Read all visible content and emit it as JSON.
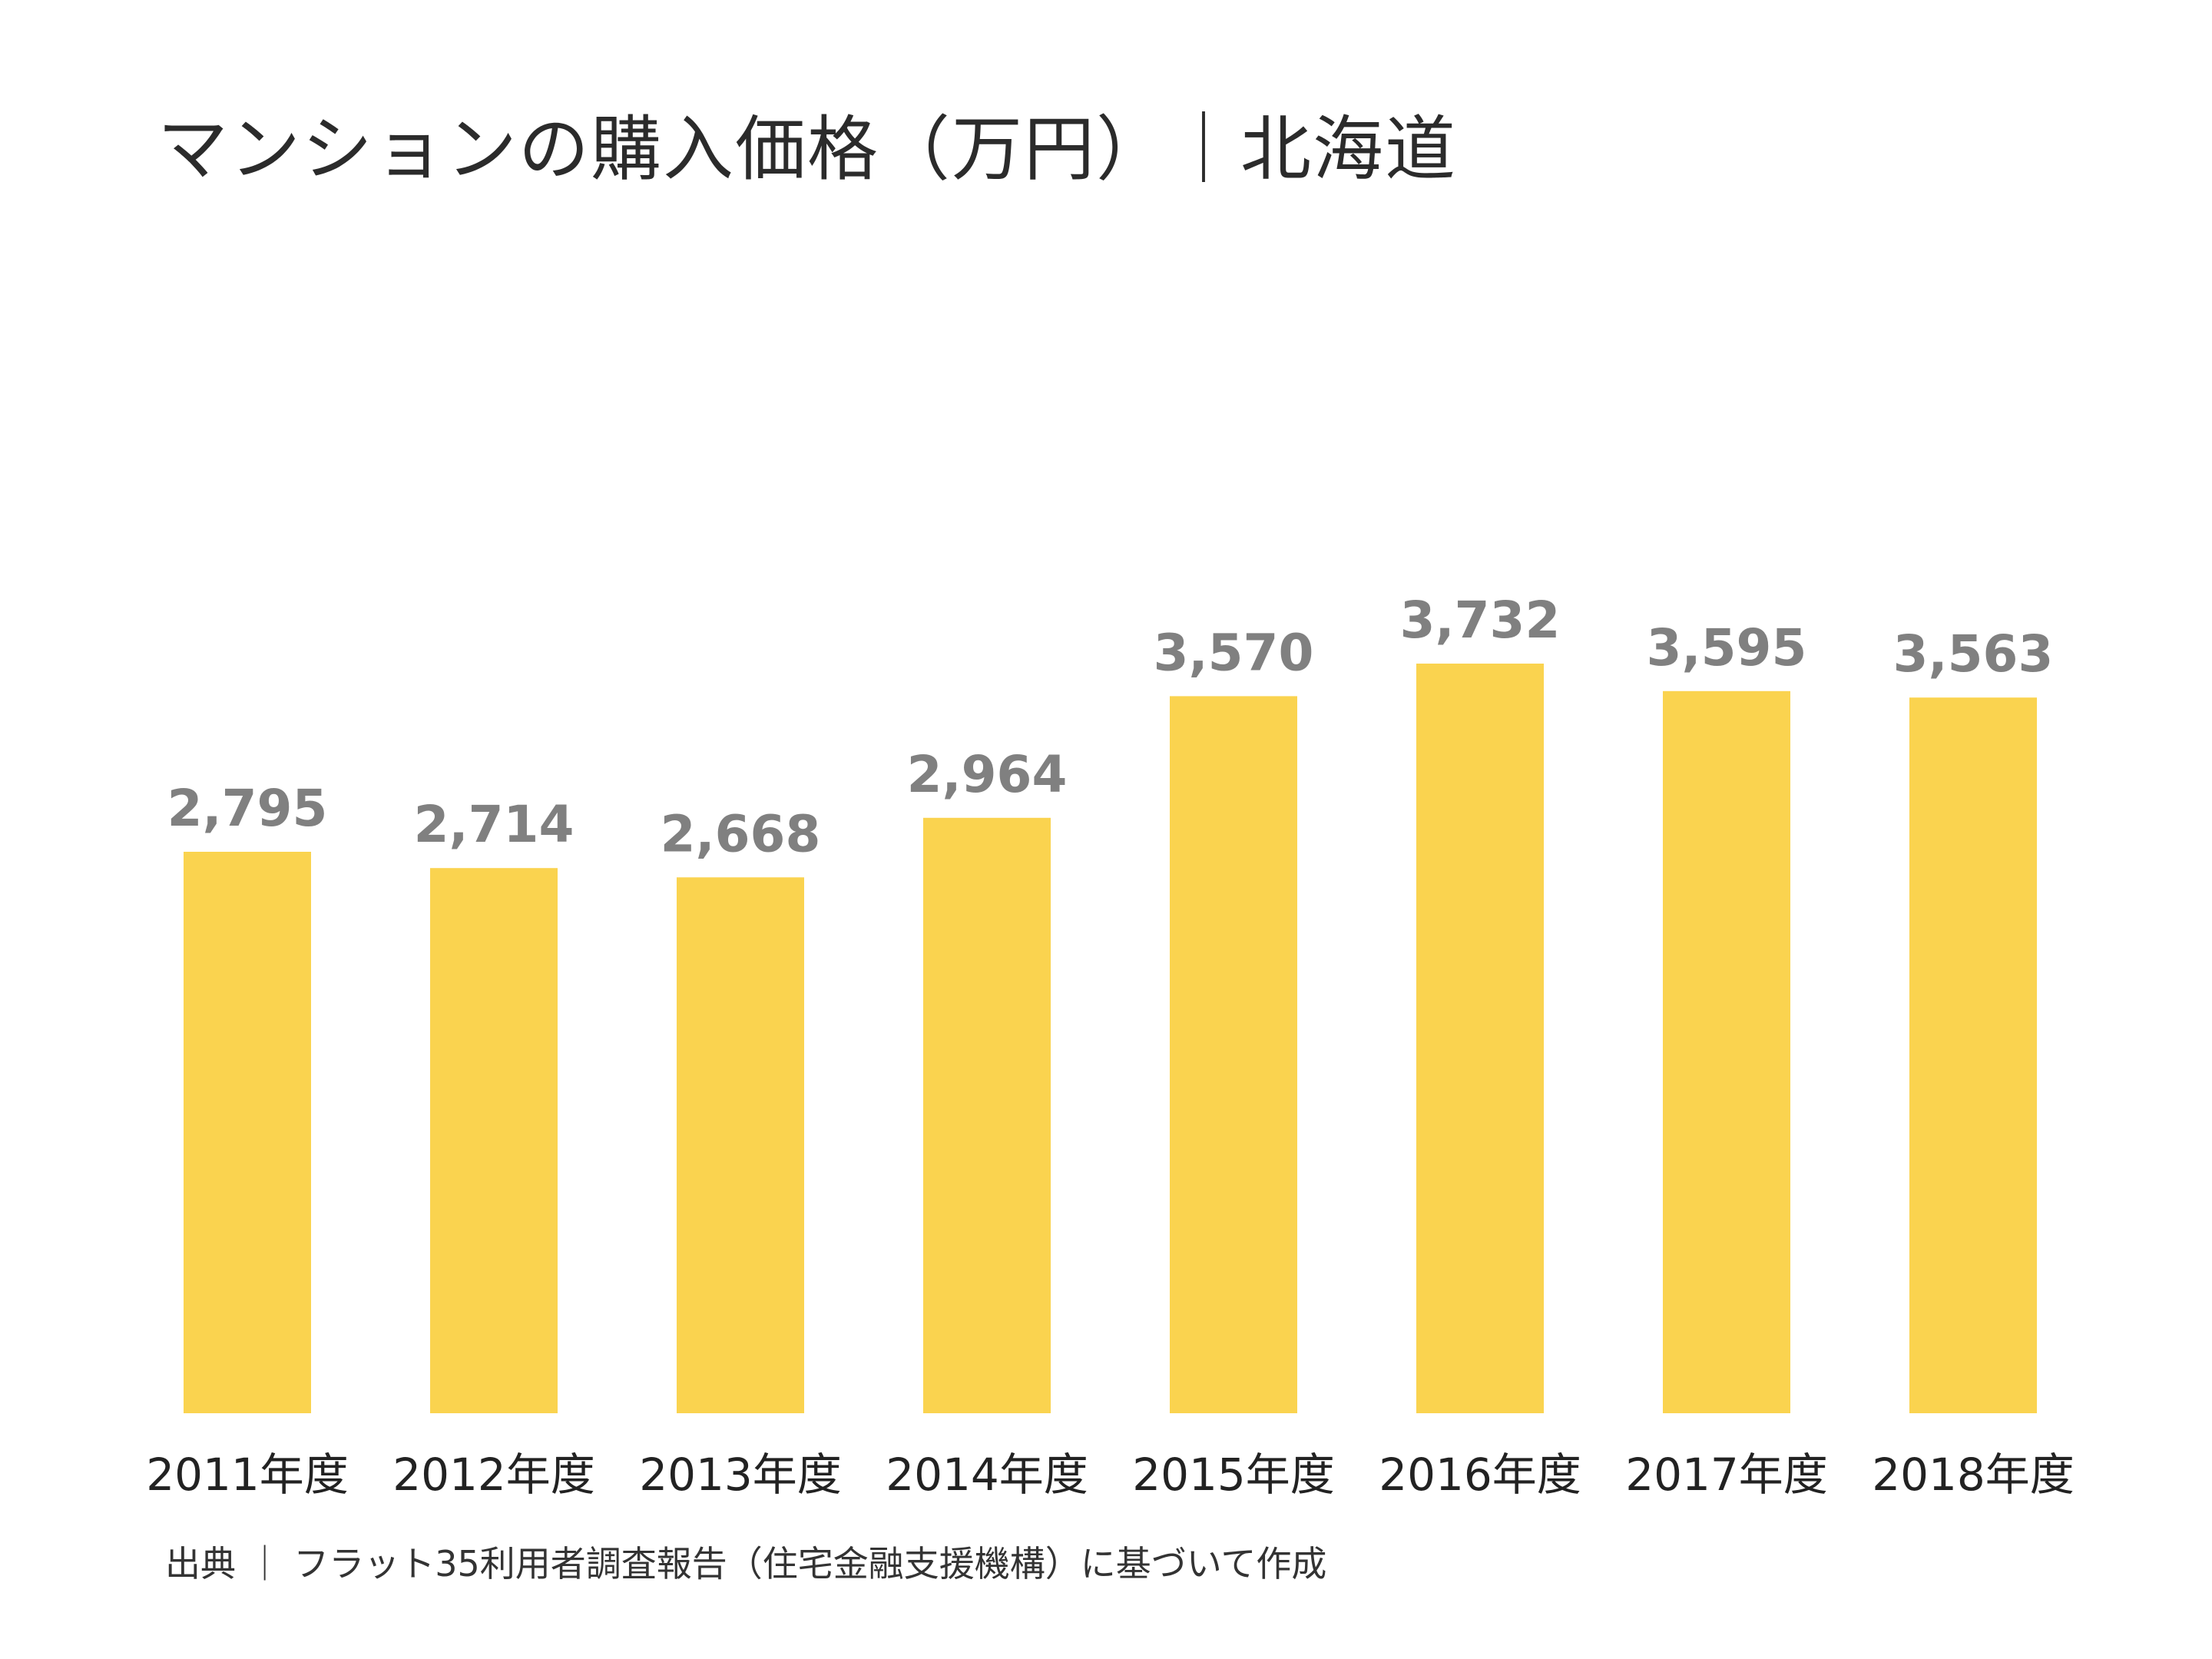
{
  "title": "マンションの購入価格（万円）｜北海道",
  "source": "出典 ｜ フラット35利用者調査報告（住宅金融支援機構）に基づいて作成",
  "colors": {
    "bar": "#FAD34F",
    "value_label": "#808080",
    "category_label": "#222222",
    "title": "#2b2b2b"
  },
  "chart_data": {
    "type": "bar",
    "categories": [
      "2011年度",
      "2012年度",
      "2013年度",
      "2014年度",
      "2015年度",
      "2016年度",
      "2017年度",
      "2018年度"
    ],
    "values": [
      2795,
      2714,
      2668,
      2964,
      3570,
      3732,
      3595,
      3563
    ],
    "value_labels": [
      "2,795",
      "2,714",
      "2,668",
      "2,964",
      "3,570",
      "3,732",
      "3,595",
      "3,563"
    ],
    "title": "マンションの購入価格（万円）｜北海道",
    "xlabel": "",
    "ylabel": "",
    "ylim": [
      0,
      3732
    ],
    "grid": false,
    "legend": "none"
  }
}
